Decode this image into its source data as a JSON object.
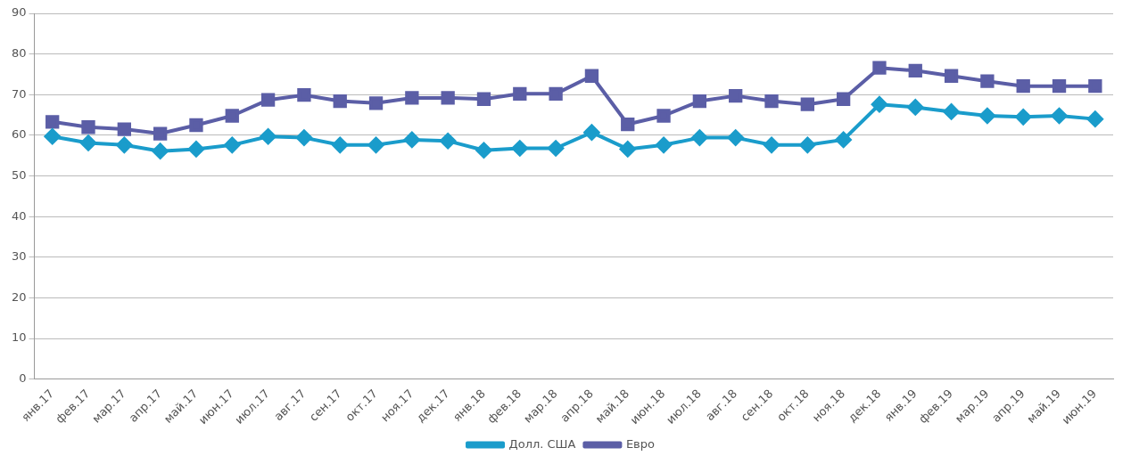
{
  "chart_data": {
    "type": "line",
    "categories": [
      "янв.17",
      "фев.17",
      "мар.17",
      "апр.17",
      "май.17",
      "июн.17",
      "июл.17",
      "авг.17",
      "сен.17",
      "окт.17",
      "ноя.17",
      "дек.17",
      "янв.18",
      "фев.18",
      "мар.18",
      "апр.18",
      "май.18",
      "июн.18",
      "июл.18",
      "авг.18",
      "сен.18",
      "окт.18",
      "ноя.18",
      "дек.18",
      "янв.19",
      "фев.19",
      "мар.19",
      "апр.19",
      "май.19",
      "июн.19"
    ],
    "series": [
      {
        "name": "Долл. США",
        "color": "#1a9ccb",
        "marker": "diamond",
        "values": [
          59.7,
          58.1,
          57.6,
          56.1,
          56.6,
          57.6,
          59.7,
          59.4,
          57.6,
          57.6,
          58.9,
          58.6,
          56.3,
          56.8,
          56.8,
          60.7,
          56.6,
          57.6,
          59.4,
          59.4,
          57.6,
          57.6,
          58.9,
          67.6,
          66.9,
          65.8,
          64.8,
          64.5,
          64.8,
          64.0
        ]
      },
      {
        "name": "Евро",
        "color": "#5b5ea6",
        "marker": "square",
        "values": [
          63.3,
          62.0,
          61.5,
          60.4,
          62.5,
          64.8,
          68.7,
          69.9,
          68.4,
          67.9,
          69.2,
          69.2,
          68.9,
          70.2,
          70.2,
          74.6,
          62.7,
          64.8,
          68.4,
          69.7,
          68.4,
          67.6,
          68.9,
          76.6,
          75.9,
          74.6,
          73.3,
          72.1,
          72.1,
          72.1
        ]
      }
    ],
    "ylim": [
      0,
      90
    ],
    "yticks": [
      0,
      10,
      20,
      30,
      40,
      50,
      60,
      70,
      80,
      90
    ],
    "grid": "y",
    "legend": "bottom",
    "line_style": "solid"
  }
}
